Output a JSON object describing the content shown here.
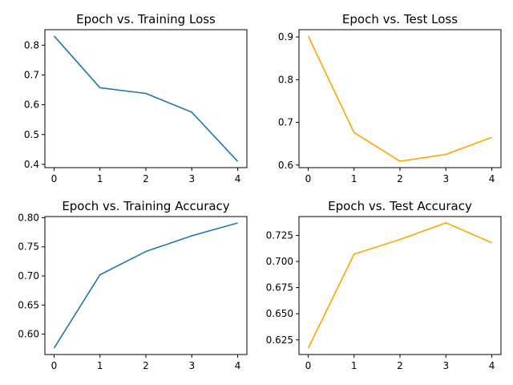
{
  "figure": {
    "background": "#ffffff"
  },
  "chart_data": [
    {
      "type": "line",
      "title": "Epoch vs. Training Loss",
      "xlabel": "",
      "ylabel": "",
      "x": [
        0,
        1,
        2,
        3,
        4
      ],
      "series": [
        {
          "values": [
            0.831,
            0.657,
            0.638,
            0.575,
            0.41
          ],
          "color": "#1f77b4"
        }
      ],
      "xlim": [
        -0.2,
        4.2
      ],
      "ylim": [
        0.389,
        0.852
      ],
      "xticks": [
        0,
        1,
        2,
        3,
        4
      ],
      "yticks": [
        0.4,
        0.5,
        0.6,
        0.7,
        0.8
      ],
      "yticklabels": [
        "0.4",
        "0.5",
        "0.6",
        "0.7",
        "0.8"
      ],
      "grid": false
    },
    {
      "type": "line",
      "title": "Epoch vs. Test Loss",
      "xlabel": "",
      "ylabel": "",
      "x": [
        0,
        1,
        2,
        3,
        4
      ],
      "series": [
        {
          "values": [
            0.902,
            0.676,
            0.609,
            0.625,
            0.665
          ],
          "color": "#ffa500"
        }
      ],
      "xlim": [
        -0.2,
        4.2
      ],
      "ylim": [
        0.594,
        0.917
      ],
      "xticks": [
        0,
        1,
        2,
        3,
        4
      ],
      "yticks": [
        0.6,
        0.7,
        0.8,
        0.9
      ],
      "yticklabels": [
        "0.6",
        "0.7",
        "0.8",
        "0.9"
      ],
      "grid": false
    },
    {
      "type": "line",
      "title": "Epoch vs. Training Accuracy",
      "xlabel": "",
      "ylabel": "",
      "x": [
        0,
        1,
        2,
        3,
        4
      ],
      "series": [
        {
          "values": [
            0.576,
            0.702,
            0.742,
            0.769,
            0.791
          ],
          "color": "#1f77b4"
        }
      ],
      "xlim": [
        -0.2,
        4.2
      ],
      "ylim": [
        0.565,
        0.802
      ],
      "xticks": [
        0,
        1,
        2,
        3,
        4
      ],
      "yticks": [
        0.6,
        0.65,
        0.7,
        0.75,
        0.8
      ],
      "yticklabels": [
        "0.60",
        "0.65",
        "0.70",
        "0.75",
        "0.80"
      ],
      "grid": false
    },
    {
      "type": "line",
      "title": "Epoch vs. Test Accuracy",
      "xlabel": "",
      "ylabel": "",
      "x": [
        0,
        1,
        2,
        3,
        4
      ],
      "series": [
        {
          "values": [
            0.617,
            0.707,
            0.721,
            0.737,
            0.718
          ],
          "color": "#ffa500"
        }
      ],
      "xlim": [
        -0.2,
        4.2
      ],
      "ylim": [
        0.611,
        0.743
      ],
      "xticks": [
        0,
        1,
        2,
        3,
        4
      ],
      "yticks": [
        0.625,
        0.65,
        0.675,
        0.7,
        0.725
      ],
      "yticklabels": [
        "0.625",
        "0.650",
        "0.675",
        "0.700",
        "0.725"
      ],
      "grid": false
    }
  ]
}
